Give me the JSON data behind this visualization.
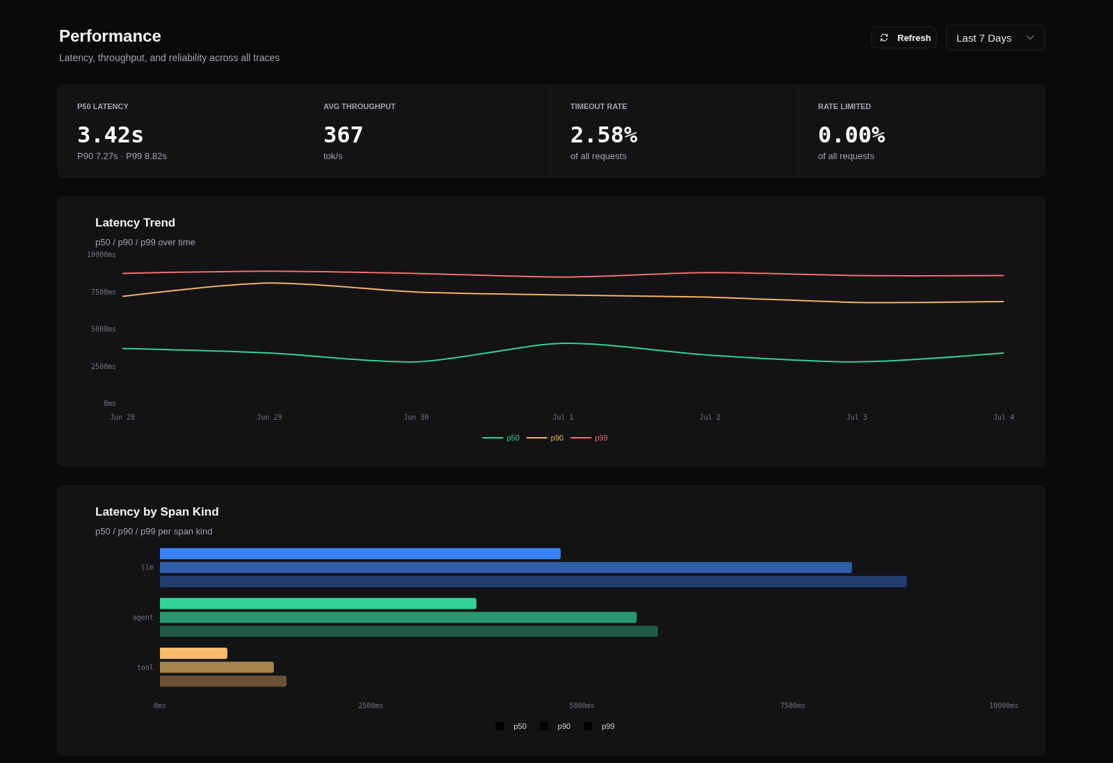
{
  "chart_data": [
    {
      "type": "other",
      "title": "Performance",
      "subtitle": "Latency, throughput, and reliability across all traces",
      "annotations": [
        "Refresh",
        "Last 7 Days"
      ]
    },
    {
      "type": "other",
      "title": "P50 LATENCY",
      "annotations": [
        "3.42s",
        "P90 7.27s · P99 8.82s"
      ]
    },
    {
      "type": "other",
      "title": "AVG THROUGHPUT",
      "annotations": [
        "367",
        "tok/s"
      ]
    },
    {
      "type": "other",
      "title": "TIMEOUT RATE",
      "annotations": [
        "2.58%",
        "of all requests"
      ]
    },
    {
      "type": "other",
      "title": "RATE LIMITED",
      "annotations": [
        "0.00%",
        "of all requests"
      ]
    },
    {
      "type": "line",
      "title": "Latency Trend",
      "subtitle": "p50 / p90 / p99 over time",
      "x": [
        "--06-28",
        "--06-29",
        "--06-30",
        "--07-01",
        "--07-02",
        "--07-03",
        "--07-04"
      ],
      "series": [
        {
          "name": "p50",
          "color": "#34d399",
          "values": [
            3700,
            3400,
            2800,
            4050,
            3250,
            2800,
            3400
          ]
        },
        {
          "name": "p90",
          "color": "#f5b35f",
          "values": [
            7200,
            8100,
            7500,
            7300,
            7150,
            6800,
            6850
          ]
        },
        {
          "name": "p99",
          "color": "#f47070",
          "values": [
            8750,
            8900,
            8750,
            8500,
            8800,
            8600,
            8600
          ]
        }
      ],
      "xlim": [
        "--06-28",
        "--07-04"
      ],
      "xticks": [
        {
          "value": "--06-28",
          "label": "Jun 28"
        },
        {
          "value": "--06-29",
          "label": "Jun 29"
        },
        {
          "value": "--06-30",
          "label": "Jun 30"
        },
        {
          "value": "--07-01",
          "label": "Jul 1"
        },
        {
          "value": "--07-02",
          "label": "Jul 2"
        },
        {
          "value": "--07-03",
          "label": "Jul 3"
        },
        {
          "value": "--07-04",
          "label": "Jul 4"
        }
      ],
      "ylim": [
        0,
        10000
      ],
      "yticks": [
        {
          "value": 0,
          "label": "0ms"
        },
        {
          "value": 2500,
          "label": "2500ms"
        },
        {
          "value": 5000,
          "label": "5000ms"
        },
        {
          "value": 7500,
          "label": "7500ms"
        },
        {
          "value": 10000,
          "label": "10000ms"
        }
      ],
      "legend": "bottom"
    },
    {
      "type": "bar",
      "orientation": "horizontal",
      "title": "Latency by Span Kind",
      "subtitle": "p50 / p90 / p99 per span kind",
      "categories": [
        "llm",
        "agent",
        "tool"
      ],
      "series": [
        {
          "name": "p50",
          "color": "#030303",
          "colors": [
            "#3b82f6",
            "#34d399",
            "#f6bb6b"
          ],
          "values": [
            4750,
            3750,
            800
          ]
        },
        {
          "name": "p90",
          "color": "#030303",
          "colors": [
            "#2f5fab",
            "#2c9574",
            "#a9854f"
          ],
          "values": [
            8200,
            5650,
            1350
          ]
        },
        {
          "name": "p99",
          "color": "#030303",
          "colors": [
            "#233d6e",
            "#225a48",
            "#6b5236"
          ],
          "values": [
            8850,
            5900,
            1500
          ]
        }
      ],
      "xlim": [
        0,
        10000
      ],
      "xticks": [
        {
          "value": 0,
          "label": "0ms"
        },
        {
          "value": 2500,
          "label": "2500ms"
        },
        {
          "value": 5000,
          "label": "5000ms"
        },
        {
          "value": 7500,
          "label": "7500ms"
        },
        {
          "value": 10000,
          "label": "10000ms"
        }
      ],
      "legend": "bottom"
    }
  ]
}
